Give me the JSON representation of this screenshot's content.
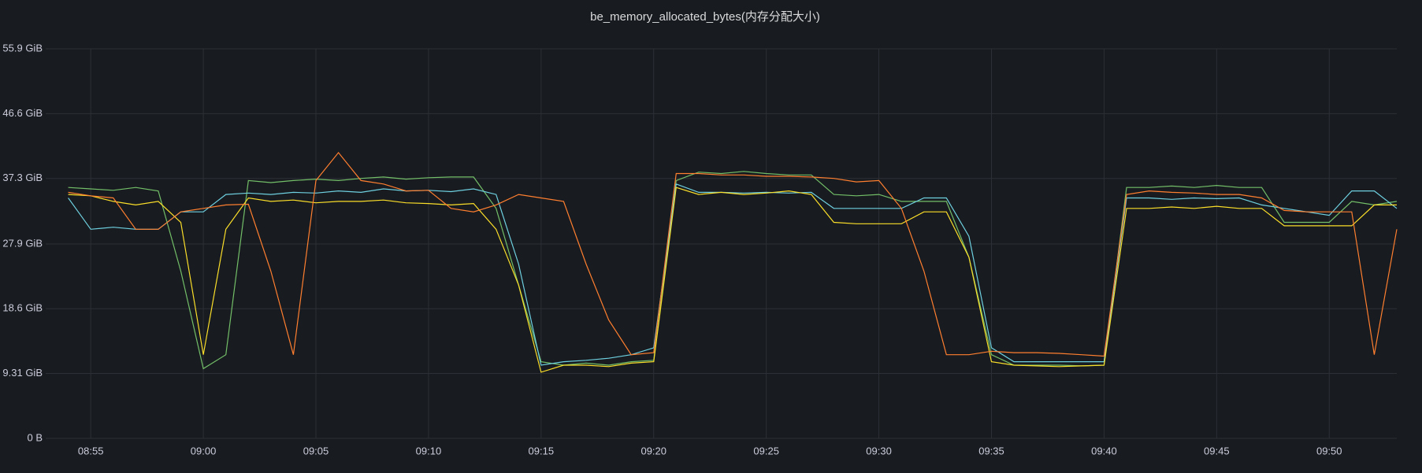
{
  "chart_data": {
    "type": "line",
    "title": "be_memory_allocated_bytes(内存分配大小)",
    "x": [
      "08:54",
      "08:55",
      "08:56",
      "08:57",
      "08:58",
      "08:59",
      "09:00",
      "09:01",
      "09:02",
      "09:03",
      "09:04",
      "09:05",
      "09:06",
      "09:07",
      "09:08",
      "09:09",
      "09:10",
      "09:11",
      "09:12",
      "09:13",
      "09:14",
      "09:15",
      "09:16",
      "09:17",
      "09:18",
      "09:19",
      "09:20",
      "09:21",
      "09:22",
      "09:23",
      "09:24",
      "09:25",
      "09:26",
      "09:27",
      "09:28",
      "09:29",
      "09:30",
      "09:31",
      "09:32",
      "09:33",
      "09:34",
      "09:35",
      "09:36",
      "09:37",
      "09:38",
      "09:39",
      "09:40",
      "09:41",
      "09:42",
      "09:43",
      "09:44",
      "09:45",
      "09:46",
      "09:47",
      "09:48",
      "09:49",
      "09:50",
      "09:51",
      "09:52",
      "09:53"
    ],
    "xlim": [
      "08:53",
      "09:53"
    ],
    "xticks": [
      "08:55",
      "09:00",
      "09:05",
      "09:10",
      "09:15",
      "09:20",
      "09:25",
      "09:30",
      "09:35",
      "09:40",
      "09:45",
      "09:50"
    ],
    "ylim": [
      0,
      55.9
    ],
    "yticks": [
      {
        "value": 0,
        "label": "0 B"
      },
      {
        "value": 9.31,
        "label": "9.31 GiB"
      },
      {
        "value": 18.6,
        "label": "18.6 GiB"
      },
      {
        "value": 27.9,
        "label": "27.9 GiB"
      },
      {
        "value": 37.3,
        "label": "37.3 GiB"
      },
      {
        "value": 46.6,
        "label": "46.6 GiB"
      },
      {
        "value": 55.9,
        "label": "55.9 GiB"
      }
    ],
    "grid": true,
    "series": [
      {
        "color": "#73bf69",
        "values": [
          36,
          35.8,
          35.6,
          36,
          35.5,
          24,
          10,
          12,
          37,
          36.7,
          37,
          37.2,
          37,
          37.3,
          37.5,
          37.2,
          37.4,
          37.5,
          37.5,
          33,
          22,
          11,
          10.5,
          10.8,
          10.5,
          11,
          11.2,
          37,
          38.2,
          38,
          38.3,
          38,
          37.8,
          37.8,
          35,
          34.8,
          35,
          34,
          34,
          34,
          26,
          12,
          10.5,
          10.5,
          10.5,
          10.4,
          10.5,
          36,
          36,
          36.2,
          36,
          36.3,
          36,
          36,
          31,
          31,
          31,
          34,
          33.5,
          34
        ]
      },
      {
        "color": "#6ed0e0",
        "values": [
          34.5,
          30,
          30.3,
          30,
          30,
          32.5,
          32.5,
          35,
          35.2,
          35,
          35.3,
          35.2,
          35.5,
          35.3,
          35.8,
          35.5,
          35.6,
          35.4,
          35.8,
          35,
          25,
          10.5,
          11,
          11.2,
          11.5,
          12,
          13,
          36.5,
          35.3,
          35.3,
          35.2,
          35.3,
          35.2,
          35.3,
          33,
          33,
          33,
          33,
          34.5,
          34.5,
          29,
          13,
          11,
          11,
          11,
          11,
          11,
          34.5,
          34.5,
          34.3,
          34.5,
          34.4,
          34.5,
          33.5,
          33,
          32.5,
          32,
          35.5,
          35.5,
          33
        ]
      },
      {
        "color": "#fade2a",
        "values": [
          35,
          34.8,
          34,
          33.5,
          34,
          31,
          12,
          30,
          34.5,
          34,
          34.2,
          33.8,
          34,
          34,
          34.2,
          33.8,
          33.7,
          33.5,
          33.7,
          30,
          22,
          9.5,
          10.5,
          10.5,
          10.3,
          10.8,
          11,
          36,
          35,
          35.3,
          35,
          35.2,
          35.5,
          35,
          31,
          30.8,
          30.8,
          30.8,
          32.5,
          32.5,
          26,
          11,
          10.5,
          10.4,
          10.3,
          10.4,
          10.5,
          33,
          33,
          33.2,
          33,
          33.3,
          33,
          33,
          30.5,
          30.5,
          30.5,
          30.5,
          33.5,
          33.5
        ]
      },
      {
        "color": "#ff7f30",
        "values": [
          35.3,
          34.8,
          34.5,
          30,
          30,
          32.5,
          33,
          33.5,
          33.6,
          24,
          12,
          37,
          41,
          37,
          36.5,
          35.5,
          35.6,
          33,
          32.5,
          33.5,
          35,
          34.5,
          34,
          25,
          17,
          12,
          12.3,
          38,
          38,
          37.8,
          37.8,
          37.6,
          37.6,
          37.5,
          37.3,
          36.8,
          37,
          33,
          24,
          12,
          12,
          12.5,
          12.3,
          12.3,
          12.2,
          12,
          11.8,
          35,
          35.5,
          35.3,
          35.2,
          35,
          35,
          34.5,
          32.7,
          32.5,
          32.5,
          32.5,
          12,
          30
        ]
      }
    ]
  }
}
